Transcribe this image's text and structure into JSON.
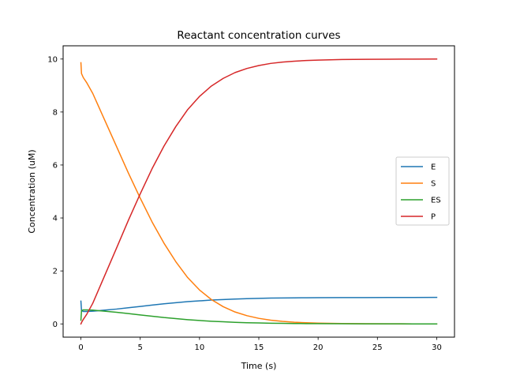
{
  "chart_data": {
    "type": "line",
    "title": "Reactant concentration curves",
    "xlabel": "Time (s)",
    "ylabel": "Concentration (uM)",
    "xlim": [
      -1.5,
      31.5
    ],
    "ylim": [
      -0.5,
      10.5
    ],
    "xticks": [
      0,
      5,
      10,
      15,
      20,
      25,
      30
    ],
    "yticks": [
      0,
      2,
      4,
      6,
      8,
      10
    ],
    "grid": false,
    "legend_position": "center-right",
    "series": [
      {
        "name": "E",
        "color": "#1f77b4",
        "x": [
          0,
          0.05,
          0.2,
          0.5,
          1,
          2,
          3,
          4,
          5,
          6,
          7,
          8,
          9,
          10,
          11,
          12,
          13,
          14,
          15,
          16,
          17,
          18,
          19,
          20,
          22,
          24,
          26,
          28,
          30
        ],
        "y": [
          0.86,
          0.5,
          0.47,
          0.47,
          0.48,
          0.52,
          0.56,
          0.61,
          0.66,
          0.71,
          0.76,
          0.8,
          0.84,
          0.87,
          0.9,
          0.92,
          0.94,
          0.955,
          0.965,
          0.975,
          0.98,
          0.985,
          0.988,
          0.99,
          0.994,
          0.996,
          0.998,
          0.999,
          1.0
        ]
      },
      {
        "name": "S",
        "color": "#ff7f0e",
        "x": [
          0,
          0.05,
          0.2,
          0.5,
          1,
          2,
          3,
          4,
          5,
          6,
          7,
          8,
          9,
          10,
          11,
          12,
          13,
          14,
          15,
          16,
          17,
          18,
          19,
          20,
          22,
          24,
          26,
          28,
          30
        ],
        "y": [
          9.86,
          9.45,
          9.3,
          9.1,
          8.7,
          7.7,
          6.7,
          5.7,
          4.75,
          3.85,
          3.05,
          2.35,
          1.75,
          1.28,
          0.92,
          0.65,
          0.45,
          0.31,
          0.21,
          0.14,
          0.095,
          0.064,
          0.043,
          0.029,
          0.013,
          0.006,
          0.003,
          0.001,
          0.0
        ]
      },
      {
        "name": "ES",
        "color": "#2ca02c",
        "x": [
          0,
          0.05,
          0.2,
          0.5,
          1,
          2,
          3,
          4,
          5,
          6,
          7,
          8,
          9,
          10,
          11,
          12,
          13,
          14,
          15,
          16,
          17,
          18,
          19,
          20,
          22,
          24,
          26,
          28,
          30
        ],
        "y": [
          0.14,
          0.5,
          0.53,
          0.53,
          0.52,
          0.48,
          0.44,
          0.39,
          0.34,
          0.29,
          0.24,
          0.2,
          0.16,
          0.13,
          0.1,
          0.08,
          0.06,
          0.045,
          0.035,
          0.025,
          0.02,
          0.015,
          0.012,
          0.01,
          0.006,
          0.004,
          0.002,
          0.001,
          0.0
        ]
      },
      {
        "name": "P",
        "color": "#d62728",
        "x": [
          0,
          0.05,
          0.2,
          0.5,
          1,
          2,
          3,
          4,
          5,
          6,
          7,
          8,
          9,
          10,
          11,
          12,
          13,
          14,
          15,
          16,
          17,
          18,
          19,
          20,
          22,
          24,
          26,
          28,
          30
        ],
        "y": [
          0.0,
          0.05,
          0.17,
          0.37,
          0.78,
          1.82,
          2.86,
          3.91,
          4.91,
          5.86,
          6.71,
          7.45,
          8.09,
          8.59,
          8.98,
          9.27,
          9.49,
          9.645,
          9.755,
          9.835,
          9.885,
          9.92,
          9.945,
          9.96,
          9.981,
          9.99,
          9.995,
          9.998,
          10.0
        ]
      }
    ]
  }
}
